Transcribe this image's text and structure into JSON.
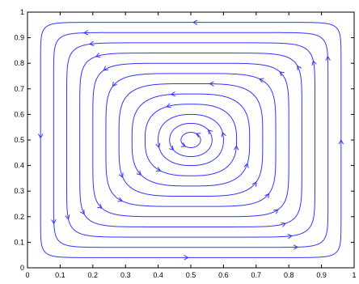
{
  "chart_data": {
    "type": "streamline",
    "title": "",
    "xlabel": "",
    "ylabel": "",
    "xlim": [
      0,
      1
    ],
    "ylim": [
      0,
      1
    ],
    "grid": false,
    "legend": "none",
    "x_ticks": [
      "0",
      "0.1",
      "0.2",
      "0.3",
      "0.4",
      "0.5",
      "0.6",
      "0.7",
      "0.8",
      "0.9",
      "1"
    ],
    "y_ticks": [
      "0",
      "0.1",
      "0.2",
      "0.3",
      "0.4",
      "0.5",
      "0.6",
      "0.7",
      "0.8",
      "0.9",
      "1"
    ],
    "vortex_center": [
      0.5,
      0.5
    ],
    "rotation": "counterclockwise",
    "streamline_color": "#3333ff",
    "streamline_levels": [
      0.92,
      0.84,
      0.76,
      0.68,
      0.6,
      0.52,
      0.44,
      0.36,
      0.28,
      0.2,
      0.13,
      0.06
    ],
    "streamline_shape_exponent": [
      18,
      14,
      10,
      8,
      6.5,
      5,
      4,
      3.2,
      2.7,
      2.3,
      2.1,
      2
    ]
  }
}
